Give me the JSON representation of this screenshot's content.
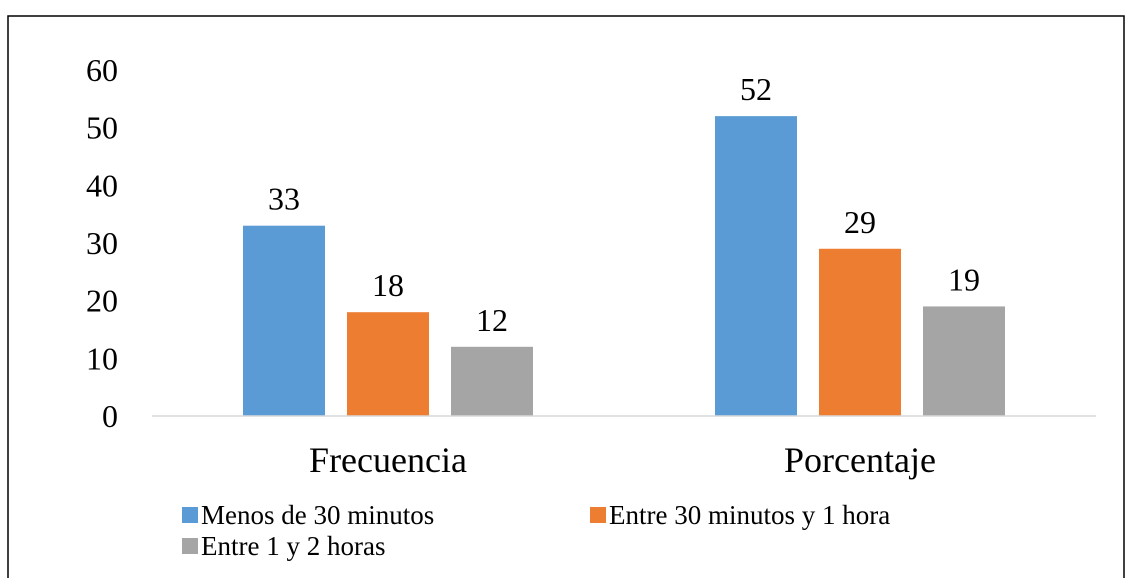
{
  "chart_data": {
    "type": "bar",
    "title": "",
    "xlabel": "",
    "ylabel": "",
    "categories": [
      "Frecuencia",
      "Porcentaje"
    ],
    "ylim": [
      0,
      60
    ],
    "yticks": [
      "0",
      "10",
      "20",
      "30",
      "40",
      "50",
      "60"
    ],
    "grid": false,
    "legend_position": "bottom",
    "series": [
      {
        "name": "Menos de 30 minutos",
        "values": [
          33,
          52
        ],
        "color": "#5B9BD5"
      },
      {
        "name": "Entre 30 minutos y 1 hora",
        "values": [
          18,
          29
        ],
        "color": "#ED7D31"
      },
      {
        "name": "Entre 1 y 2 horas",
        "values": [
          12,
          19
        ],
        "color": "#A5A5A5"
      }
    ]
  }
}
